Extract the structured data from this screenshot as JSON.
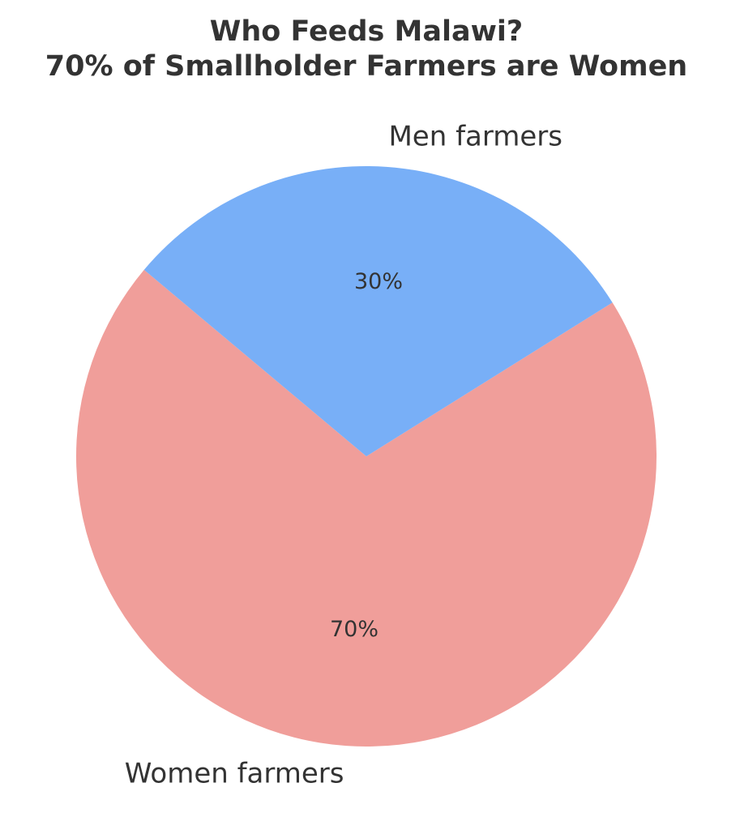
{
  "chart_data": {
    "type": "pie",
    "title": [
      "Who Feeds Malawi?",
      "70% of Smallholder Farmers are Women"
    ],
    "categories": [
      "Women farmers",
      "Men farmers"
    ],
    "values": [
      70,
      30
    ],
    "value_labels": [
      "70%",
      "30%"
    ],
    "colors": [
      "#f09e9a",
      "#78aff7"
    ]
  }
}
